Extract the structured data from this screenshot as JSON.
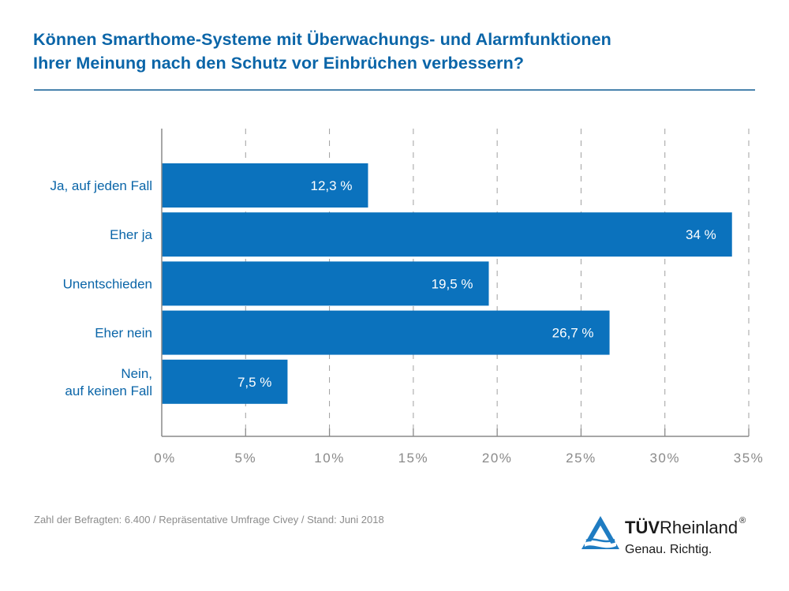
{
  "title": {
    "line1": "Können Smarthome-Systeme mit Überwachungs- und Alarmfunktionen",
    "line2": "Ihrer Meinung nach den Schutz vor Einbrüchen verbessern?"
  },
  "colors": {
    "bar": "#0b72bd",
    "title": "#0a65a8",
    "axis": "#8a8a8a",
    "grid": "#a0a0a0"
  },
  "chart_data": {
    "type": "bar",
    "orientation": "horizontal",
    "title": "Können Smarthome-Systeme mit Überwachungs- und Alarmfunktionen Ihrer Meinung nach den Schutz vor Einbrüchen verbessern?",
    "categories": [
      [
        "Ja, auf jeden Fall"
      ],
      [
        "Eher ja"
      ],
      [
        "Unentschieden"
      ],
      [
        "Eher nein"
      ],
      [
        "Nein,",
        "auf keinen Fall"
      ]
    ],
    "values": [
      12.3,
      34,
      19.5,
      26.7,
      7.5
    ],
    "value_labels": [
      "12,3 %",
      "34 %",
      "19,5 %",
      "26,7 %",
      "7,5 %"
    ],
    "xlabel": "",
    "ylabel": "",
    "xlim": [
      0,
      35
    ],
    "x_ticks": [
      0,
      5,
      10,
      15,
      20,
      25,
      30,
      35
    ],
    "x_tick_labels": [
      "0%",
      "5%",
      "10%",
      "15%",
      "20%",
      "25%",
      "30%",
      "35%"
    ],
    "grid": "vertical dashed",
    "legend": "none"
  },
  "footnote": "Zahl der Befragten: 6.400 / Repräsentative Umfrage Civey / Stand: Juni 2018",
  "logo": {
    "brand_bold": "TÜV",
    "brand_regular": "Rheinland",
    "registered": "®",
    "tagline": "Genau. Richtig."
  }
}
